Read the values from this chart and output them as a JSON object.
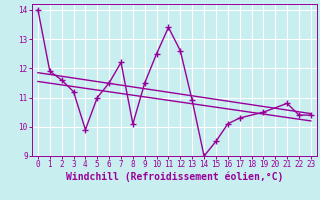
{
  "xlabel": "Windchill (Refroidissement éolien,°C)",
  "bg_color": "#c8eef0",
  "grid_color": "#ffffff",
  "line_color": "#990099",
  "xlim": [
    -0.5,
    23.5
  ],
  "ylim": [
    9,
    14.2
  ],
  "yticks": [
    9,
    10,
    11,
    12,
    13,
    14
  ],
  "xticks": [
    0,
    1,
    2,
    3,
    4,
    5,
    6,
    7,
    8,
    9,
    10,
    11,
    12,
    13,
    14,
    15,
    16,
    17,
    18,
    19,
    20,
    21,
    22,
    23
  ],
  "data_x": [
    0,
    1,
    2,
    3,
    4,
    5,
    6,
    7,
    8,
    9,
    10,
    11,
    12,
    13,
    14,
    15,
    16,
    17,
    19,
    21,
    22,
    23
  ],
  "data_y": [
    14.0,
    11.9,
    11.6,
    11.2,
    9.9,
    11.0,
    11.5,
    12.2,
    10.1,
    11.5,
    12.5,
    13.4,
    12.6,
    10.9,
    9.0,
    9.5,
    10.1,
    10.3,
    10.5,
    10.8,
    10.4,
    10.4
  ],
  "trend1_x": [
    0,
    23
  ],
  "trend1_y": [
    11.85,
    10.45
  ],
  "trend2_x": [
    0,
    23
  ],
  "trend2_y": [
    11.55,
    10.2
  ],
  "marker": "+",
  "marker_size": 4.5,
  "line_width": 1.0,
  "tick_label_fontsize": 5.5,
  "xlabel_fontsize": 7.0
}
